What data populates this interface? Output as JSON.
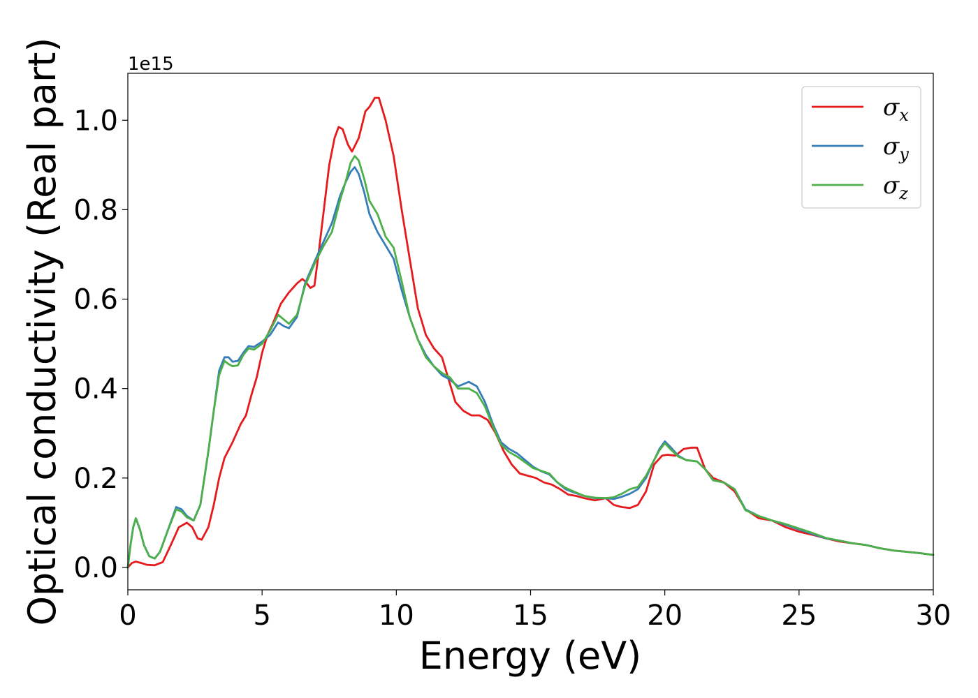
{
  "chart_data": {
    "type": "line",
    "title": "",
    "xlabel": "Energy (eV)",
    "ylabel": "Optical conductivity (Real part)",
    "y_offset_label": "1e15",
    "xlim": [
      0,
      30
    ],
    "ylim": [
      -0.05,
      1.105
    ],
    "xticks": [
      0,
      5,
      10,
      15,
      20,
      25,
      30
    ],
    "xtick_labels": [
      "0",
      "5",
      "10",
      "15",
      "20",
      "25",
      "30"
    ],
    "yticks": [
      0.0,
      0.2,
      0.4,
      0.6,
      0.8,
      1.0
    ],
    "ytick_labels": [
      "0.0",
      "0.2",
      "0.4",
      "0.6",
      "0.8",
      "1.0"
    ],
    "grid": false,
    "legend_position": "top-right",
    "series": [
      {
        "name": "σ",
        "subscript": "x",
        "color": "#e41a1c",
        "points": [
          [
            0,
            0
          ],
          [
            0.15,
            0.01
          ],
          [
            0.3,
            0.013
          ],
          [
            0.5,
            0.01
          ],
          [
            0.7,
            0.006
          ],
          [
            1.0,
            0.005
          ],
          [
            1.3,
            0.012
          ],
          [
            1.6,
            0.05
          ],
          [
            1.9,
            0.09
          ],
          [
            2.2,
            0.1
          ],
          [
            2.4,
            0.09
          ],
          [
            2.6,
            0.065
          ],
          [
            2.75,
            0.062
          ],
          [
            3.0,
            0.09
          ],
          [
            3.2,
            0.14
          ],
          [
            3.4,
            0.2
          ],
          [
            3.6,
            0.245
          ],
          [
            3.9,
            0.28
          ],
          [
            4.2,
            0.32
          ],
          [
            4.4,
            0.34
          ],
          [
            4.6,
            0.385
          ],
          [
            4.8,
            0.425
          ],
          [
            5.0,
            0.48
          ],
          [
            5.2,
            0.52
          ],
          [
            5.4,
            0.545
          ],
          [
            5.7,
            0.59
          ],
          [
            6.0,
            0.615
          ],
          [
            6.3,
            0.635
          ],
          [
            6.5,
            0.645
          ],
          [
            6.6,
            0.64
          ],
          [
            6.8,
            0.625
          ],
          [
            6.95,
            0.63
          ],
          [
            7.1,
            0.7
          ],
          [
            7.3,
            0.8
          ],
          [
            7.5,
            0.9
          ],
          [
            7.7,
            0.96
          ],
          [
            7.85,
            0.985
          ],
          [
            8.0,
            0.98
          ],
          [
            8.2,
            0.945
          ],
          [
            8.35,
            0.93
          ],
          [
            8.6,
            0.96
          ],
          [
            8.85,
            1.02
          ],
          [
            9.0,
            1.03
          ],
          [
            9.2,
            1.05
          ],
          [
            9.35,
            1.05
          ],
          [
            9.6,
            1.0
          ],
          [
            9.9,
            0.92
          ],
          [
            10.2,
            0.8
          ],
          [
            10.5,
            0.69
          ],
          [
            10.8,
            0.58
          ],
          [
            11.1,
            0.52
          ],
          [
            11.4,
            0.49
          ],
          [
            11.7,
            0.47
          ],
          [
            12.0,
            0.41
          ],
          [
            12.2,
            0.37
          ],
          [
            12.5,
            0.35
          ],
          [
            12.8,
            0.34
          ],
          [
            13.1,
            0.34
          ],
          [
            13.4,
            0.33
          ],
          [
            13.7,
            0.3
          ],
          [
            14.0,
            0.26
          ],
          [
            14.3,
            0.23
          ],
          [
            14.6,
            0.21
          ],
          [
            14.9,
            0.205
          ],
          [
            15.2,
            0.2
          ],
          [
            15.5,
            0.19
          ],
          [
            15.8,
            0.185
          ],
          [
            16.1,
            0.175
          ],
          [
            16.4,
            0.163
          ],
          [
            16.7,
            0.16
          ],
          [
            17.0,
            0.155
          ],
          [
            17.4,
            0.15
          ],
          [
            17.8,
            0.155
          ],
          [
            18.1,
            0.14
          ],
          [
            18.4,
            0.135
          ],
          [
            18.7,
            0.133
          ],
          [
            19.0,
            0.14
          ],
          [
            19.3,
            0.17
          ],
          [
            19.6,
            0.23
          ],
          [
            19.9,
            0.25
          ],
          [
            20.1,
            0.252
          ],
          [
            20.4,
            0.25
          ],
          [
            20.7,
            0.265
          ],
          [
            21.0,
            0.268
          ],
          [
            21.2,
            0.268
          ],
          [
            21.5,
            0.22
          ],
          [
            21.8,
            0.2
          ],
          [
            22.2,
            0.19
          ],
          [
            22.6,
            0.17
          ],
          [
            23.0,
            0.13
          ],
          [
            23.5,
            0.11
          ],
          [
            24.0,
            0.105
          ],
          [
            24.5,
            0.09
          ],
          [
            25.0,
            0.08
          ],
          [
            25.5,
            0.073
          ],
          [
            26.0,
            0.065
          ],
          [
            26.5,
            0.058
          ],
          [
            27.0,
            0.054
          ],
          [
            27.5,
            0.05
          ],
          [
            28.0,
            0.043
          ],
          [
            28.5,
            0.038
          ],
          [
            29.0,
            0.035
          ],
          [
            29.5,
            0.032
          ],
          [
            30.0,
            0.028
          ]
        ]
      },
      {
        "name": "σ",
        "subscript": "y",
        "color": "#377eb8",
        "points": [
          [
            0,
            0
          ],
          [
            0.1,
            0.05
          ],
          [
            0.2,
            0.09
          ],
          [
            0.3,
            0.11
          ],
          [
            0.45,
            0.085
          ],
          [
            0.6,
            0.05
          ],
          [
            0.8,
            0.025
          ],
          [
            1.0,
            0.02
          ],
          [
            1.2,
            0.035
          ],
          [
            1.5,
            0.085
          ],
          [
            1.8,
            0.135
          ],
          [
            2.0,
            0.13
          ],
          [
            2.2,
            0.115
          ],
          [
            2.45,
            0.105
          ],
          [
            2.7,
            0.14
          ],
          [
            3.0,
            0.26
          ],
          [
            3.2,
            0.35
          ],
          [
            3.4,
            0.44
          ],
          [
            3.6,
            0.47
          ],
          [
            3.75,
            0.47
          ],
          [
            3.9,
            0.46
          ],
          [
            4.1,
            0.462
          ],
          [
            4.3,
            0.48
          ],
          [
            4.5,
            0.495
          ],
          [
            4.7,
            0.493
          ],
          [
            5.0,
            0.505
          ],
          [
            5.3,
            0.52
          ],
          [
            5.6,
            0.548
          ],
          [
            5.8,
            0.54
          ],
          [
            6.0,
            0.535
          ],
          [
            6.3,
            0.56
          ],
          [
            6.6,
            0.635
          ],
          [
            7.0,
            0.69
          ],
          [
            7.3,
            0.73
          ],
          [
            7.6,
            0.77
          ],
          [
            7.9,
            0.83
          ],
          [
            8.1,
            0.86
          ],
          [
            8.3,
            0.885
          ],
          [
            8.45,
            0.895
          ],
          [
            8.6,
            0.88
          ],
          [
            8.8,
            0.84
          ],
          [
            9.0,
            0.79
          ],
          [
            9.3,
            0.75
          ],
          [
            9.6,
            0.72
          ],
          [
            9.9,
            0.69
          ],
          [
            10.2,
            0.62
          ],
          [
            10.5,
            0.56
          ],
          [
            10.8,
            0.51
          ],
          [
            11.1,
            0.475
          ],
          [
            11.4,
            0.45
          ],
          [
            11.7,
            0.43
          ],
          [
            12.0,
            0.42
          ],
          [
            12.3,
            0.405
          ],
          [
            12.7,
            0.415
          ],
          [
            13.0,
            0.405
          ],
          [
            13.3,
            0.37
          ],
          [
            13.6,
            0.32
          ],
          [
            13.9,
            0.28
          ],
          [
            14.2,
            0.265
          ],
          [
            14.5,
            0.255
          ],
          [
            14.8,
            0.24
          ],
          [
            15.1,
            0.225
          ],
          [
            15.4,
            0.215
          ],
          [
            15.7,
            0.208
          ],
          [
            16.0,
            0.19
          ],
          [
            16.3,
            0.175
          ],
          [
            16.6,
            0.168
          ],
          [
            17.0,
            0.16
          ],
          [
            17.4,
            0.155
          ],
          [
            17.8,
            0.155
          ],
          [
            18.1,
            0.153
          ],
          [
            18.4,
            0.158
          ],
          [
            18.7,
            0.165
          ],
          [
            19.0,
            0.175
          ],
          [
            19.3,
            0.2
          ],
          [
            19.6,
            0.24
          ],
          [
            19.8,
            0.265
          ],
          [
            20.0,
            0.282
          ],
          [
            20.2,
            0.27
          ],
          [
            20.5,
            0.25
          ],
          [
            20.8,
            0.24
          ],
          [
            21.2,
            0.237
          ],
          [
            21.5,
            0.22
          ],
          [
            21.8,
            0.195
          ],
          [
            22.2,
            0.19
          ],
          [
            22.6,
            0.175
          ],
          [
            23.0,
            0.13
          ],
          [
            23.5,
            0.115
          ],
          [
            24.0,
            0.105
          ],
          [
            24.5,
            0.095
          ],
          [
            25.0,
            0.085
          ],
          [
            25.5,
            0.075
          ],
          [
            26.0,
            0.065
          ],
          [
            26.5,
            0.06
          ],
          [
            27.0,
            0.054
          ],
          [
            27.5,
            0.05
          ],
          [
            28.0,
            0.043
          ],
          [
            28.5,
            0.038
          ],
          [
            29.0,
            0.035
          ],
          [
            29.5,
            0.032
          ],
          [
            30.0,
            0.028
          ]
        ]
      },
      {
        "name": "σ",
        "subscript": "z",
        "color": "#4daf4a",
        "points": [
          [
            0,
            0
          ],
          [
            0.1,
            0.05
          ],
          [
            0.2,
            0.09
          ],
          [
            0.3,
            0.11
          ],
          [
            0.45,
            0.085
          ],
          [
            0.6,
            0.05
          ],
          [
            0.8,
            0.025
          ],
          [
            1.0,
            0.02
          ],
          [
            1.2,
            0.035
          ],
          [
            1.5,
            0.085
          ],
          [
            1.8,
            0.13
          ],
          [
            2.0,
            0.125
          ],
          [
            2.2,
            0.112
          ],
          [
            2.45,
            0.105
          ],
          [
            2.7,
            0.14
          ],
          [
            3.0,
            0.26
          ],
          [
            3.2,
            0.35
          ],
          [
            3.4,
            0.43
          ],
          [
            3.6,
            0.462
          ],
          [
            3.75,
            0.455
          ],
          [
            3.9,
            0.45
          ],
          [
            4.1,
            0.452
          ],
          [
            4.3,
            0.475
          ],
          [
            4.5,
            0.49
          ],
          [
            4.7,
            0.487
          ],
          [
            5.0,
            0.5
          ],
          [
            5.3,
            0.53
          ],
          [
            5.6,
            0.565
          ],
          [
            5.8,
            0.555
          ],
          [
            6.0,
            0.545
          ],
          [
            6.3,
            0.565
          ],
          [
            6.6,
            0.63
          ],
          [
            7.0,
            0.685
          ],
          [
            7.3,
            0.72
          ],
          [
            7.6,
            0.75
          ],
          [
            7.9,
            0.82
          ],
          [
            8.1,
            0.86
          ],
          [
            8.3,
            0.905
          ],
          [
            8.45,
            0.92
          ],
          [
            8.6,
            0.91
          ],
          [
            8.8,
            0.87
          ],
          [
            9.0,
            0.82
          ],
          [
            9.3,
            0.79
          ],
          [
            9.6,
            0.74
          ],
          [
            9.9,
            0.715
          ],
          [
            10.2,
            0.64
          ],
          [
            10.5,
            0.56
          ],
          [
            10.8,
            0.51
          ],
          [
            11.1,
            0.47
          ],
          [
            11.4,
            0.45
          ],
          [
            11.7,
            0.435
          ],
          [
            12.0,
            0.425
          ],
          [
            12.3,
            0.4
          ],
          [
            12.7,
            0.4
          ],
          [
            13.0,
            0.39
          ],
          [
            13.3,
            0.36
          ],
          [
            13.6,
            0.315
          ],
          [
            13.9,
            0.275
          ],
          [
            14.2,
            0.258
          ],
          [
            14.5,
            0.248
          ],
          [
            14.8,
            0.235
          ],
          [
            15.1,
            0.222
          ],
          [
            15.4,
            0.216
          ],
          [
            15.7,
            0.21
          ],
          [
            16.0,
            0.19
          ],
          [
            16.3,
            0.178
          ],
          [
            16.6,
            0.17
          ],
          [
            17.0,
            0.16
          ],
          [
            17.4,
            0.156
          ],
          [
            17.8,
            0.155
          ],
          [
            18.1,
            0.157
          ],
          [
            18.4,
            0.165
          ],
          [
            18.7,
            0.175
          ],
          [
            19.0,
            0.18
          ],
          [
            19.3,
            0.205
          ],
          [
            19.6,
            0.24
          ],
          [
            19.8,
            0.262
          ],
          [
            20.0,
            0.278
          ],
          [
            20.2,
            0.265
          ],
          [
            20.5,
            0.248
          ],
          [
            20.8,
            0.24
          ],
          [
            21.2,
            0.237
          ],
          [
            21.5,
            0.22
          ],
          [
            21.8,
            0.195
          ],
          [
            22.2,
            0.19
          ],
          [
            22.6,
            0.175
          ],
          [
            23.0,
            0.128
          ],
          [
            23.5,
            0.115
          ],
          [
            24.0,
            0.105
          ],
          [
            24.5,
            0.097
          ],
          [
            25.0,
            0.087
          ],
          [
            25.5,
            0.077
          ],
          [
            26.0,
            0.066
          ],
          [
            26.5,
            0.06
          ],
          [
            27.0,
            0.054
          ],
          [
            27.5,
            0.05
          ],
          [
            28.0,
            0.043
          ],
          [
            28.5,
            0.038
          ],
          [
            29.0,
            0.035
          ],
          [
            29.5,
            0.032
          ],
          [
            30.0,
            0.028
          ]
        ]
      }
    ]
  }
}
